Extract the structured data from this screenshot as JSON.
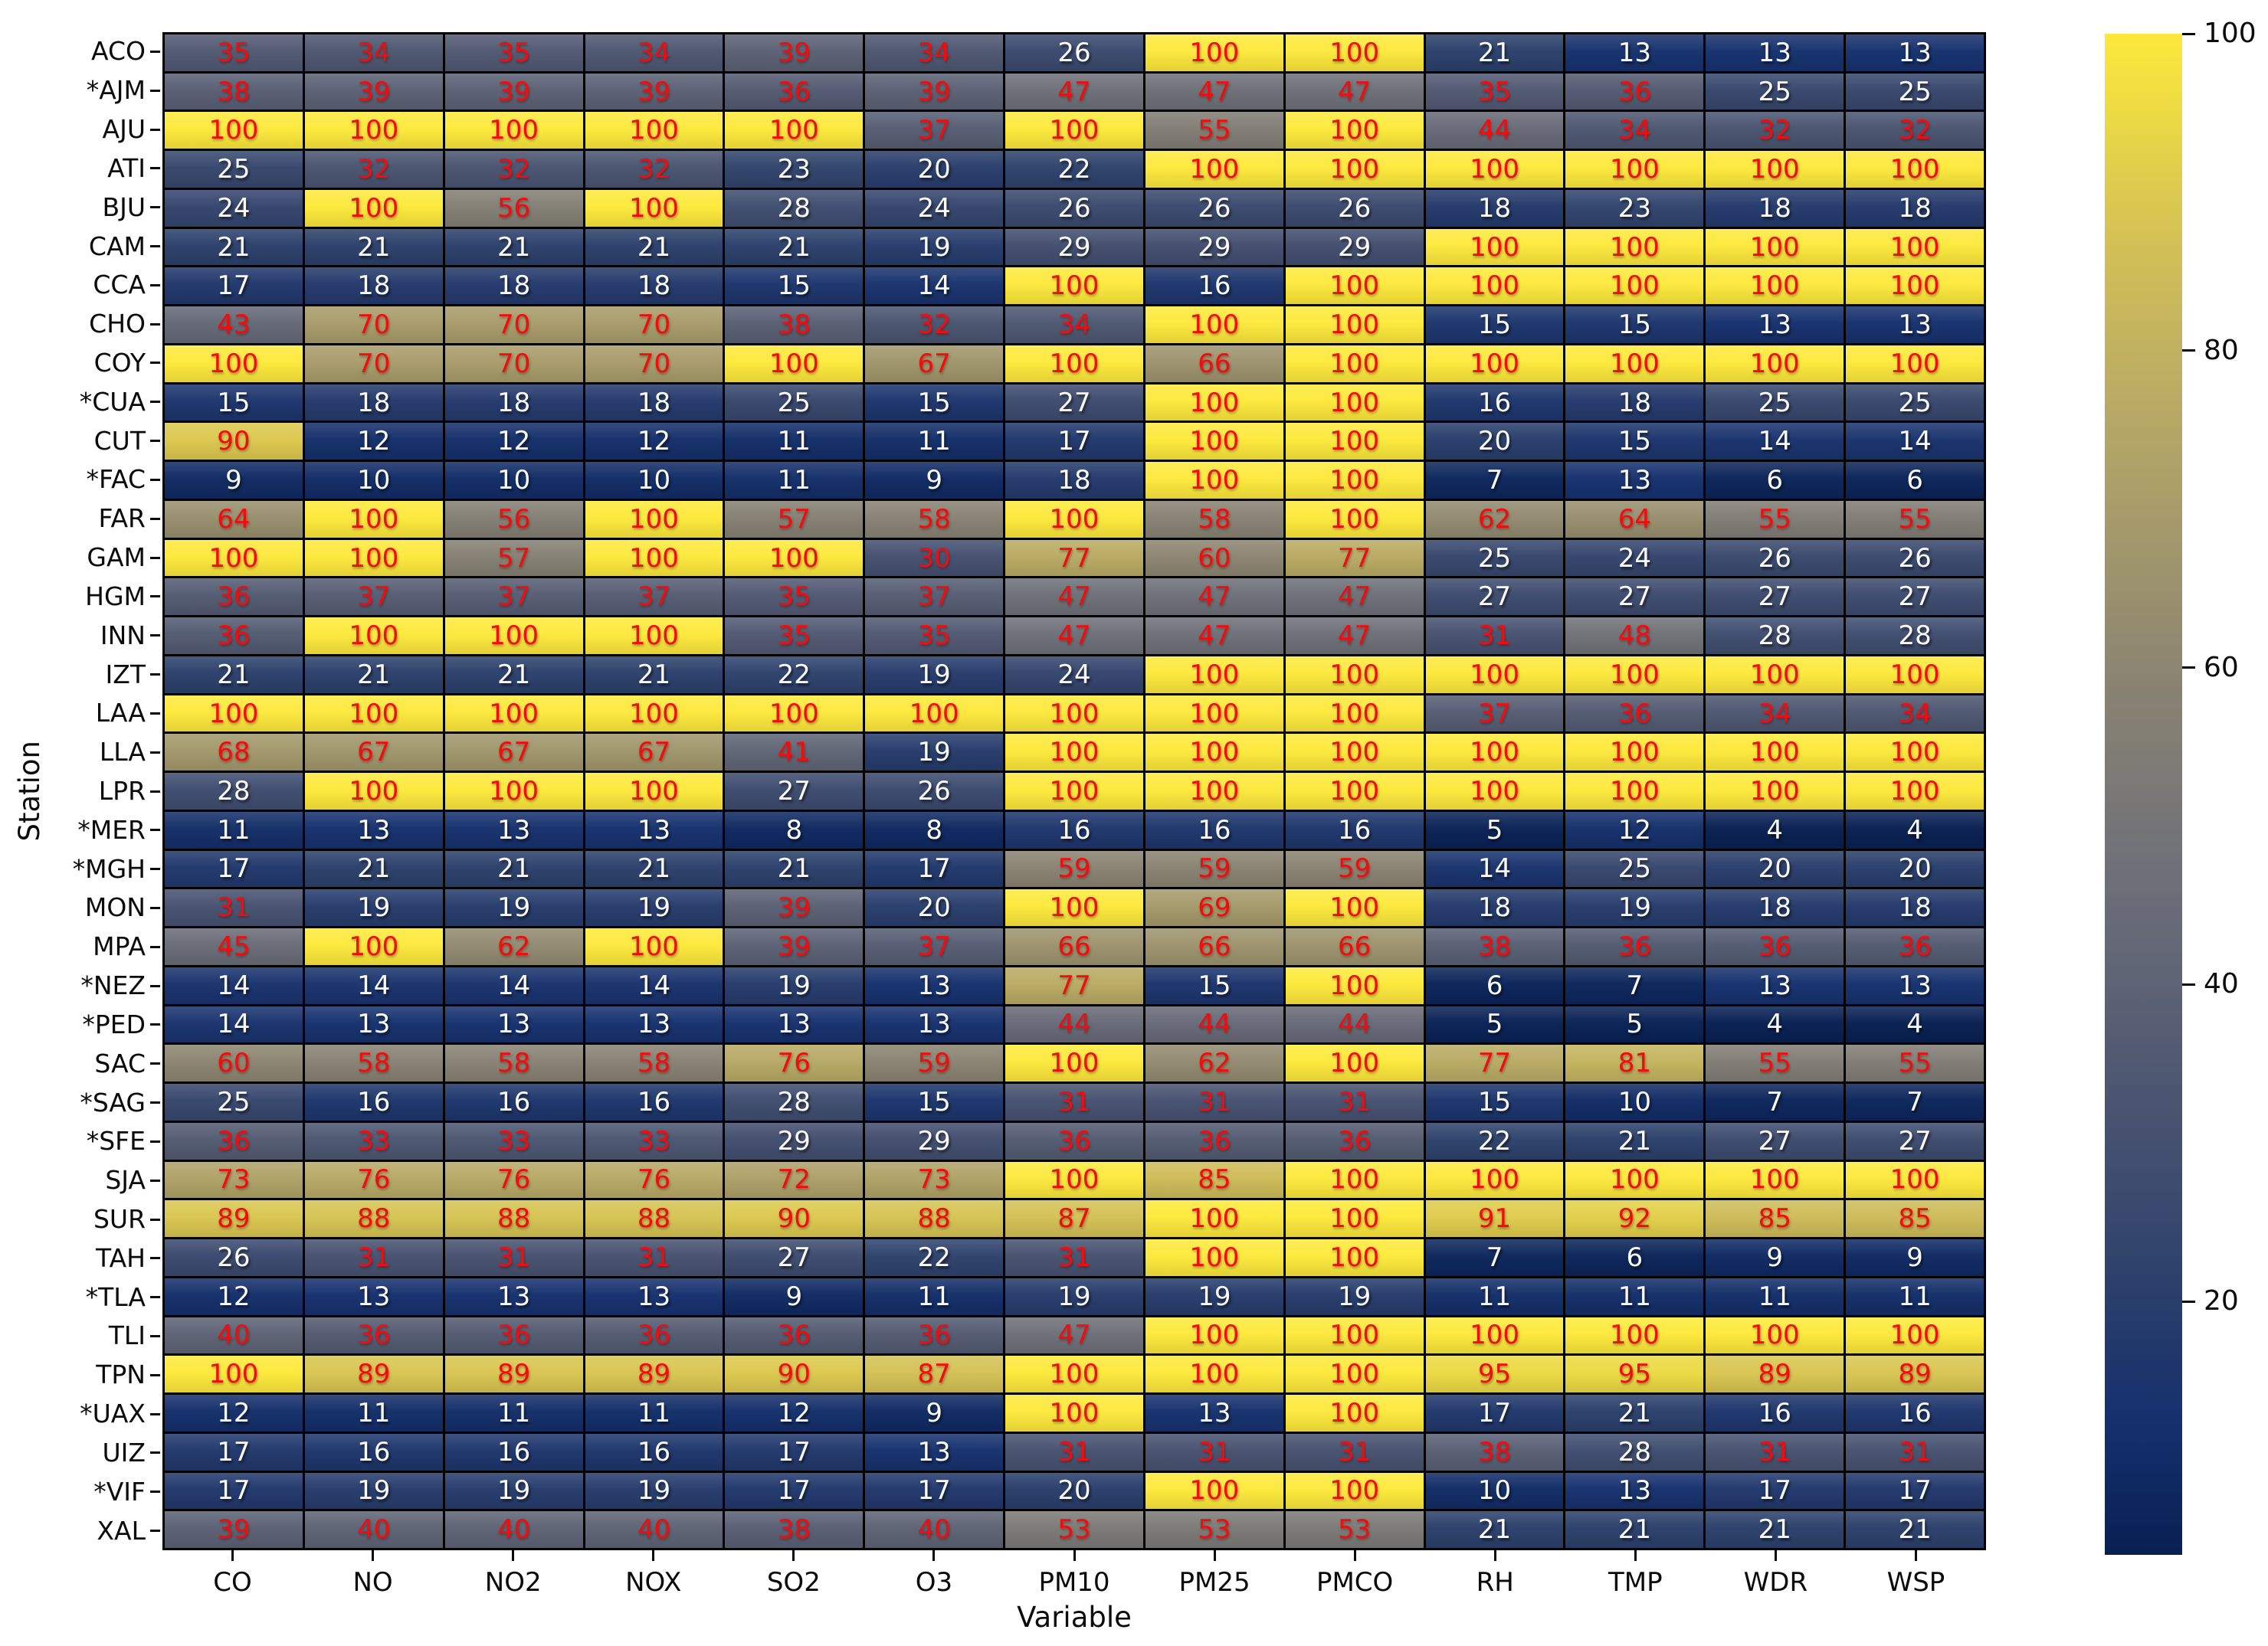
{
  "chart_data": {
    "type": "heatmap",
    "title": "",
    "xlabel": "Variable",
    "ylabel": "Station",
    "columns": [
      "CO",
      "NO",
      "NO2",
      "NOX",
      "SO2",
      "O3",
      "PM10",
      "PM25",
      "PMCO",
      "RH",
      "TMP",
      "WDR",
      "WSP"
    ],
    "rows": [
      "ACO",
      "*AJM",
      "AJU",
      "ATI",
      "BJU",
      "CAM",
      "CCA",
      "CHO",
      "COY",
      "*CUA",
      "CUT",
      "*FAC",
      "FAR",
      "GAM",
      "HGM",
      "INN",
      "IZT",
      "LAA",
      "LLA",
      "LPR",
      "*MER",
      "*MGH",
      "MON",
      "MPA",
      "*NEZ",
      "*PED",
      "SAC",
      "*SAG",
      "*SFE",
      "SJA",
      "SUR",
      "TAH",
      "*TLA",
      "TLI",
      "TPN",
      "*UAX",
      "UIZ",
      "*VIF",
      "XAL"
    ],
    "values": [
      [
        35,
        34,
        35,
        34,
        39,
        34,
        26,
        100,
        100,
        21,
        13,
        13,
        13
      ],
      [
        38,
        39,
        39,
        39,
        36,
        39,
        47,
        47,
        47,
        35,
        36,
        25,
        25
      ],
      [
        100,
        100,
        100,
        100,
        100,
        37,
        100,
        55,
        100,
        44,
        34,
        32,
        32
      ],
      [
        25,
        32,
        32,
        32,
        23,
        20,
        22,
        100,
        100,
        100,
        100,
        100,
        100
      ],
      [
        24,
        100,
        56,
        100,
        28,
        24,
        26,
        26,
        26,
        18,
        23,
        18,
        18
      ],
      [
        21,
        21,
        21,
        21,
        21,
        19,
        29,
        29,
        29,
        100,
        100,
        100,
        100
      ],
      [
        17,
        18,
        18,
        18,
        15,
        14,
        100,
        16,
        100,
        100,
        100,
        100,
        100
      ],
      [
        43,
        70,
        70,
        70,
        38,
        32,
        34,
        100,
        100,
        15,
        15,
        13,
        13
      ],
      [
        100,
        70,
        70,
        70,
        100,
        67,
        100,
        66,
        100,
        100,
        100,
        100,
        100
      ],
      [
        15,
        18,
        18,
        18,
        25,
        15,
        27,
        100,
        100,
        16,
        18,
        25,
        25
      ],
      [
        90,
        12,
        12,
        12,
        11,
        11,
        17,
        100,
        100,
        20,
        15,
        14,
        14
      ],
      [
        9,
        10,
        10,
        10,
        11,
        9,
        18,
        100,
        100,
        7,
        13,
        6,
        6
      ],
      [
        64,
        100,
        56,
        100,
        57,
        58,
        100,
        58,
        100,
        62,
        64,
        55,
        55
      ],
      [
        100,
        100,
        57,
        100,
        100,
        30,
        77,
        60,
        77,
        25,
        24,
        26,
        26
      ],
      [
        36,
        37,
        37,
        37,
        35,
        37,
        47,
        47,
        47,
        27,
        27,
        27,
        27
      ],
      [
        36,
        100,
        100,
        100,
        35,
        35,
        47,
        47,
        47,
        31,
        48,
        28,
        28
      ],
      [
        21,
        21,
        21,
        21,
        22,
        19,
        24,
        100,
        100,
        100,
        100,
        100,
        100
      ],
      [
        100,
        100,
        100,
        100,
        100,
        100,
        100,
        100,
        100,
        37,
        36,
        34,
        34
      ],
      [
        68,
        67,
        67,
        67,
        41,
        19,
        100,
        100,
        100,
        100,
        100,
        100,
        100
      ],
      [
        28,
        100,
        100,
        100,
        27,
        26,
        100,
        100,
        100,
        100,
        100,
        100,
        100
      ],
      [
        11,
        13,
        13,
        13,
        8,
        8,
        16,
        16,
        16,
        5,
        12,
        4,
        4
      ],
      [
        17,
        21,
        21,
        21,
        21,
        17,
        59,
        59,
        59,
        14,
        25,
        20,
        20
      ],
      [
        31,
        19,
        19,
        19,
        39,
        20,
        100,
        69,
        100,
        18,
        19,
        18,
        18
      ],
      [
        45,
        100,
        62,
        100,
        39,
        37,
        66,
        66,
        66,
        38,
        36,
        36,
        36
      ],
      [
        14,
        14,
        14,
        14,
        19,
        13,
        77,
        15,
        100,
        6,
        7,
        13,
        13
      ],
      [
        14,
        13,
        13,
        13,
        13,
        13,
        44,
        44,
        44,
        5,
        5,
        4,
        4
      ],
      [
        60,
        58,
        58,
        58,
        76,
        59,
        100,
        62,
        100,
        77,
        81,
        55,
        55
      ],
      [
        25,
        16,
        16,
        16,
        28,
        15,
        31,
        31,
        31,
        15,
        10,
        7,
        7
      ],
      [
        36,
        33,
        33,
        33,
        29,
        29,
        36,
        36,
        36,
        22,
        21,
        27,
        27
      ],
      [
        73,
        76,
        76,
        76,
        72,
        73,
        100,
        85,
        100,
        100,
        100,
        100,
        100
      ],
      [
        89,
        88,
        88,
        88,
        90,
        88,
        87,
        100,
        100,
        91,
        92,
        85,
        85
      ],
      [
        26,
        31,
        31,
        31,
        27,
        22,
        31,
        100,
        100,
        7,
        6,
        9,
        9
      ],
      [
        12,
        13,
        13,
        13,
        9,
        11,
        19,
        19,
        19,
        11,
        11,
        11,
        11
      ],
      [
        40,
        36,
        36,
        36,
        36,
        36,
        47,
        100,
        100,
        100,
        100,
        100,
        100
      ],
      [
        100,
        89,
        89,
        89,
        90,
        87,
        100,
        100,
        100,
        95,
        95,
        89,
        89
      ],
      [
        12,
        11,
        11,
        11,
        12,
        9,
        100,
        13,
        100,
        17,
        21,
        16,
        16
      ],
      [
        17,
        16,
        16,
        16,
        17,
        13,
        31,
        31,
        31,
        38,
        28,
        31,
        31
      ],
      [
        17,
        19,
        19,
        19,
        17,
        17,
        20,
        100,
        100,
        10,
        13,
        17,
        17
      ],
      [
        39,
        40,
        40,
        40,
        38,
        40,
        53,
        53,
        53,
        21,
        21,
        21,
        21
      ]
    ],
    "value_range": [
      4,
      100
    ],
    "colorbar_ticks": [
      100,
      80,
      60,
      40,
      20
    ],
    "annotation": {
      "red_text_min_value": 30,
      "red_text_color": "#f20c0c",
      "white_text_color": "#fafafa"
    },
    "colormap": {
      "name": "cividis",
      "anchors": [
        {
          "v": 4,
          "c": "#082052"
        },
        {
          "v": 9,
          "c": "#0f2a63"
        },
        {
          "v": 13,
          "c": "#16316e"
        },
        {
          "v": 17,
          "c": "#21386c"
        },
        {
          "v": 21,
          "c": "#2b406b"
        },
        {
          "v": 26,
          "c": "#3a496e"
        },
        {
          "v": 31,
          "c": "#475270"
        },
        {
          "v": 36,
          "c": "#535b72"
        },
        {
          "v": 40,
          "c": "#5e6375"
        },
        {
          "v": 47,
          "c": "#6e7078"
        },
        {
          "v": 53,
          "c": "#7c7a76"
        },
        {
          "v": 59,
          "c": "#8a8372"
        },
        {
          "v": 64,
          "c": "#988f6e"
        },
        {
          "v": 70,
          "c": "#a89c6a"
        },
        {
          "v": 77,
          "c": "#b9ab64"
        },
        {
          "v": 85,
          "c": "#cebc59"
        },
        {
          "v": 90,
          "c": "#dcc94f"
        },
        {
          "v": 95,
          "c": "#ecda43"
        },
        {
          "v": 100,
          "c": "#fde93c"
        }
      ]
    },
    "grid_line_color": "#000000",
    "legend_position": "right-colorbar"
  }
}
